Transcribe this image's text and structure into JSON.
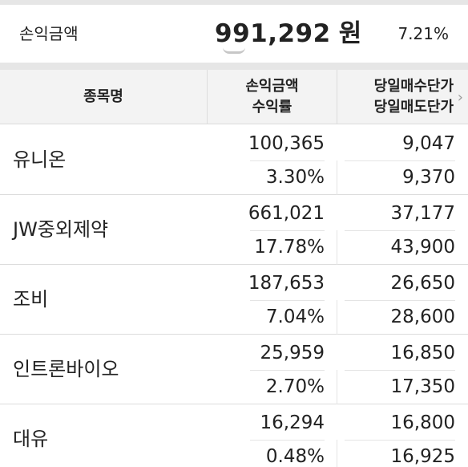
{
  "summary": {
    "label": "손익금액",
    "amount": "991,292",
    "unit": "원",
    "rate": "7.21%"
  },
  "table": {
    "headers": {
      "name": "종목명",
      "pl_amount": "손익금액",
      "return_rate": "수익률",
      "buy_price": "당일매수단가",
      "sell_price": "당일매도단가",
      "more_icon": "chevron-right-icon"
    },
    "rows": [
      {
        "name": "유니온",
        "pl_amount": "100,365",
        "return_rate": "3.30%",
        "buy_price": "9,047",
        "sell_price": "9,370"
      },
      {
        "name": "JW중외제약",
        "pl_amount": "661,021",
        "return_rate": "17.78%",
        "buy_price": "37,177",
        "sell_price": "43,900"
      },
      {
        "name": "조비",
        "pl_amount": "187,653",
        "return_rate": "7.04%",
        "buy_price": "26,650",
        "sell_price": "28,600"
      },
      {
        "name": "인트론바이오",
        "pl_amount": "25,959",
        "return_rate": "2.70%",
        "buy_price": "16,850",
        "sell_price": "17,350"
      },
      {
        "name": "대유",
        "pl_amount": "16,294",
        "return_rate": "0.48%",
        "buy_price": "16,800",
        "sell_price": "16,925"
      }
    ]
  }
}
